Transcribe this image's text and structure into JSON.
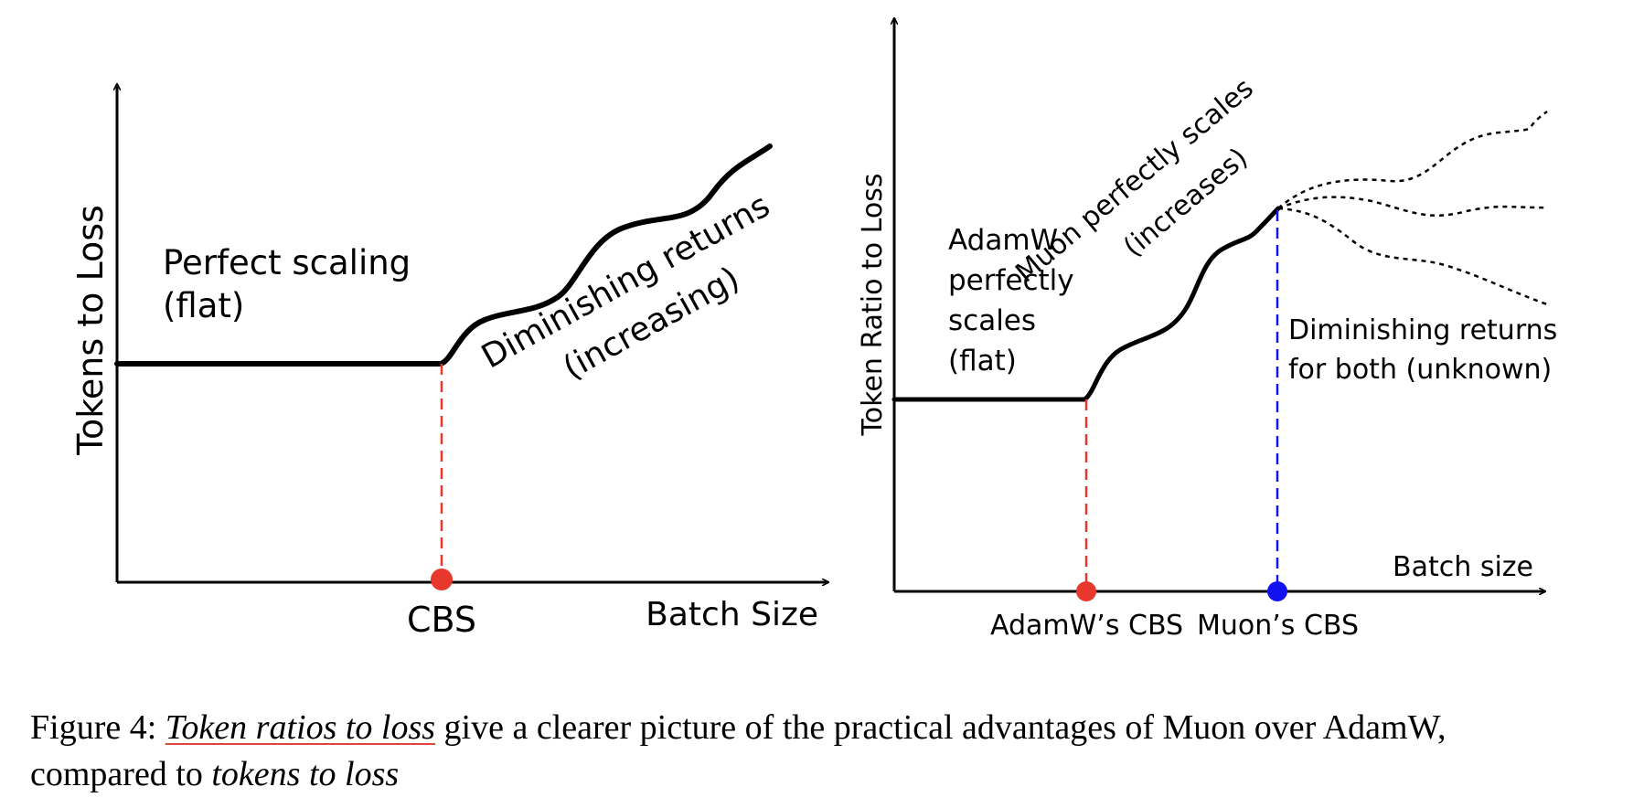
{
  "left_panel": {
    "y_axis_label": "Tokens to Loss",
    "x_axis_label": "Batch Size",
    "cbs_label": "CBS",
    "flat_text_line1": "Perfect scaling",
    "flat_text_line2": "(flat)",
    "rise_text_line1": "Diminishing returns",
    "rise_text_line2": "(increasing)",
    "cbs_marker_color": "#e8372c"
  },
  "right_panel": {
    "y_axis_label": "Token Ratio to Loss",
    "x_axis_label": "Batch size",
    "adamw_cbs_label": "AdamW’s CBS",
    "muon_cbs_label": "Muon’s CBS",
    "flat_text_lines": [
      "AdamW",
      "perfectly",
      "scales",
      "(flat)"
    ],
    "rise_text_line1": "Muon perfectly scales",
    "rise_text_line2": "(increases)",
    "unknown_text_line1": "Diminishing returns",
    "unknown_text_line2": "for both (unknown)",
    "adamw_marker_color": "#e8372c",
    "muon_marker_color": "#1212f0"
  },
  "caption": {
    "prefix": "Figure 4: ",
    "highlight": "Token ratios to loss",
    "middle": " give a clearer picture of the practical advantages of Muon over AdamW,",
    "line2_prefix": "compared to ",
    "line2_em": "tokens to loss"
  }
}
